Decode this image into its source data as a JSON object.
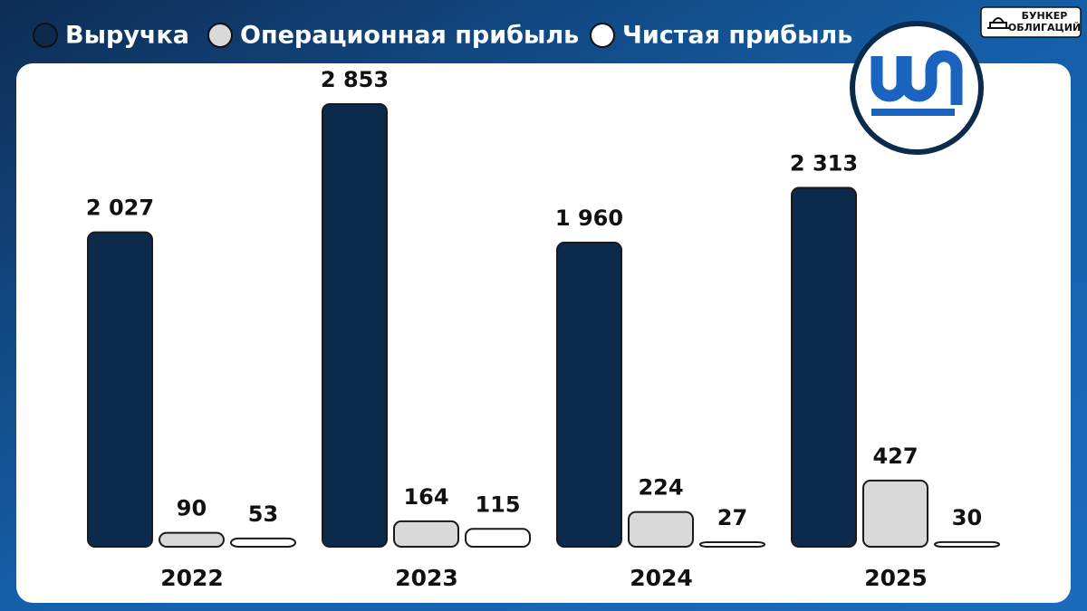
{
  "chart_data": {
    "type": "bar",
    "categories": [
      "2022",
      "2023",
      "2024",
      "2025"
    ],
    "series": [
      {
        "name": "Выручка",
        "color": "#0b2a4c",
        "values": [
          2027,
          2853,
          1960,
          2313
        ],
        "value_labels": [
          "2 027",
          "2 853",
          "1 960",
          "2 313"
        ]
      },
      {
        "name": "Операционная прибыль",
        "color": "#d9d9d9",
        "values": [
          90,
          164,
          224,
          427
        ]
      },
      {
        "name": "Чистая прибыль",
        "color": "#ffffff",
        "values": [
          53,
          115,
          27,
          30
        ]
      }
    ]
  },
  "brand": {
    "line1": "БУНКЕР",
    "line2": "ОБЛИГАЦИЙ"
  }
}
